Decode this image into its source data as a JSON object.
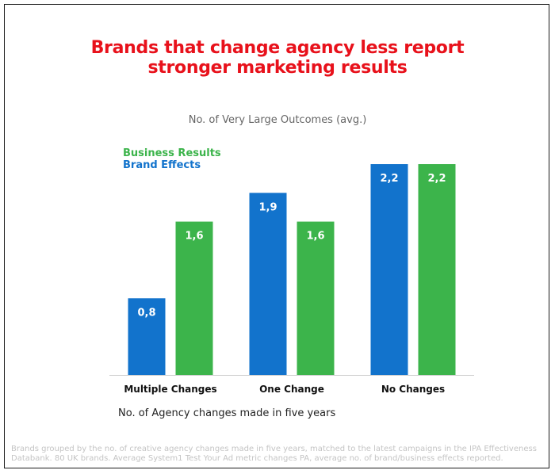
{
  "title_lines": [
    "Brands that change agency less report",
    "stronger marketing results"
  ],
  "chart_data": {
    "type": "bar",
    "title": "Brands that change agency less report stronger marketing results",
    "ylabel": "No. of Very Large Outcomes (avg.)",
    "xlabel": "No. of Agency changes made in five years",
    "categories": [
      "Multiple Changes",
      "One Change",
      "No Changes"
    ],
    "series": [
      {
        "name": "Brand Effects",
        "values": [
          0.8,
          1.9,
          2.2
        ],
        "labels": [
          "0,8",
          "1,9",
          "2,2"
        ],
        "color": "#1273cc"
      },
      {
        "name": "Business Results",
        "values": [
          1.6,
          1.6,
          2.2
        ],
        "labels": [
          "1,6",
          "1,6",
          "2,2"
        ],
        "color": "#3cb44b"
      }
    ],
    "ylim": [
      0,
      2.25
    ],
    "grid": false,
    "legend_position": "top-left"
  },
  "legend": {
    "business": "Business Results",
    "brand": "Brand Effects"
  },
  "footnote": "Brands grouped by the no. of creative agency changes made in five years, matched to the latest campaigns in the IPA Effectiveness Databank. 80 UK brands. Average System1 Test Your Ad metric changes PA, average no. of brand/business effects reported."
}
